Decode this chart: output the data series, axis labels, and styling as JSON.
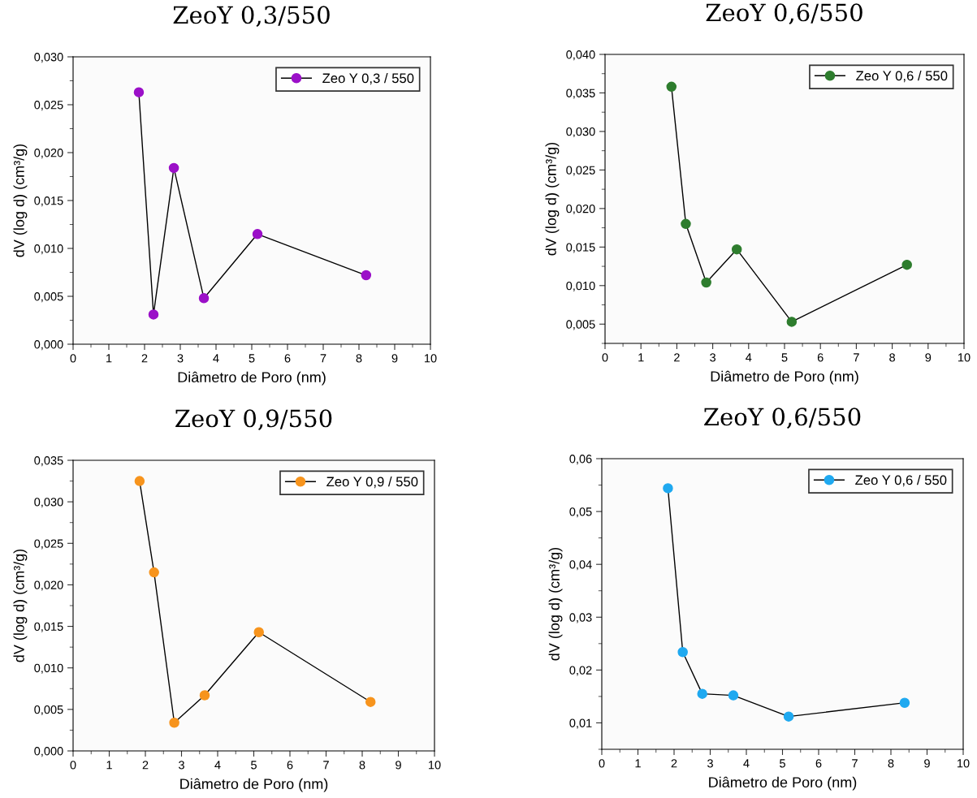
{
  "chart_data": [
    {
      "type": "line",
      "title": "ZeoY 0,3/550",
      "xlabel": "Diâmetro de Poro (nm)",
      "ylabel": "dV (log d) (cm³/g)",
      "xlim": [
        0,
        10
      ],
      "xticks": [
        0,
        1,
        2,
        3,
        4,
        5,
        6,
        7,
        8,
        9,
        10
      ],
      "ylim": [
        0,
        0.03
      ],
      "yticks": [
        {
          "value": 0,
          "label": "0,000"
        },
        {
          "value": 0.005,
          "label": "0,005"
        },
        {
          "value": 0.01,
          "label": "0,010"
        },
        {
          "value": 0.015,
          "label": "0,015"
        },
        {
          "value": 0.02,
          "label": "0,020"
        },
        {
          "value": 0.025,
          "label": "0,025"
        },
        {
          "value": 0.03,
          "label": "0,030"
        }
      ],
      "marker": "circle",
      "legend": "top right",
      "grid": false,
      "series": [
        {
          "name": "Zeo Y 0,3 / 550",
          "color": "#9b10c8",
          "x": [
            1.84,
            2.25,
            2.82,
            3.66,
            5.16,
            8.2
          ],
          "values": [
            0.0263,
            0.0031,
            0.0184,
            0.0048,
            0.0115,
            0.0072
          ]
        }
      ]
    },
    {
      "type": "line",
      "title": "ZeoY 0,6/550",
      "xlabel": "Diâmetro de Poro (nm)",
      "ylabel": "dV (log d) (cm³/g)",
      "xlim": [
        0,
        10
      ],
      "xticks": [
        0,
        1,
        2,
        3,
        4,
        5,
        6,
        7,
        8,
        9,
        10
      ],
      "ylim": [
        0.0025,
        0.04
      ],
      "yticks": [
        {
          "value": 0.005,
          "label": "0,005"
        },
        {
          "value": 0.01,
          "label": "0,010"
        },
        {
          "value": 0.015,
          "label": "0,015"
        },
        {
          "value": 0.02,
          "label": "0,020"
        },
        {
          "value": 0.025,
          "label": "0,025"
        },
        {
          "value": 0.03,
          "label": "0,030"
        },
        {
          "value": 0.035,
          "label": "0,035"
        },
        {
          "value": 0.04,
          "label": "0,040"
        }
      ],
      "marker": "circle",
      "legend": "top right",
      "grid": false,
      "series": [
        {
          "name": "Zeo Y 0,6 / 550",
          "color": "#2e7d2e",
          "x": [
            1.85,
            2.25,
            2.82,
            3.67,
            5.2,
            8.41
          ],
          "values": [
            0.0358,
            0.018,
            0.0104,
            0.0147,
            0.0053,
            0.0127
          ]
        }
      ]
    },
    {
      "type": "line",
      "title": "ZeoY 0,9/550",
      "xlabel": "Diâmetro de Poro (nm)",
      "ylabel": "dV (log d) (cm³/g)",
      "xlim": [
        0,
        10
      ],
      "xticks": [
        0,
        1,
        2,
        3,
        4,
        5,
        6,
        7,
        8,
        9,
        10
      ],
      "ylim": [
        0,
        0.035
      ],
      "yticks": [
        {
          "value": 0,
          "label": "0,000"
        },
        {
          "value": 0.005,
          "label": "0,005"
        },
        {
          "value": 0.01,
          "label": "0,010"
        },
        {
          "value": 0.015,
          "label": "0,015"
        },
        {
          "value": 0.02,
          "label": "0,020"
        },
        {
          "value": 0.025,
          "label": "0,025"
        },
        {
          "value": 0.03,
          "label": "0,030"
        },
        {
          "value": 0.035,
          "label": "0,035"
        }
      ],
      "marker": "circle",
      "legend": "top right",
      "grid": false,
      "series": [
        {
          "name": "Zeo Y 0,9 / 550",
          "color": "#f7941d",
          "x": [
            1.84,
            2.24,
            2.8,
            3.64,
            5.14,
            8.23
          ],
          "values": [
            0.0325,
            0.0215,
            0.0034,
            0.0067,
            0.0143,
            0.0059
          ]
        }
      ]
    },
    {
      "type": "line",
      "title": "ZeoY 0,6/550",
      "xlabel": "Diâmetro de Poro (nm)",
      "ylabel": "dV (log d) (cm³/g)",
      "xlim": [
        0,
        10
      ],
      "xticks": [
        0,
        1,
        2,
        3,
        4,
        5,
        6,
        7,
        8,
        9,
        10
      ],
      "ylim": [
        0.005,
        0.06
      ],
      "yticks": [
        {
          "value": 0.01,
          "label": "0,01"
        },
        {
          "value": 0.02,
          "label": "0,02"
        },
        {
          "value": 0.03,
          "label": "0,03"
        },
        {
          "value": 0.04,
          "label": "0,04"
        },
        {
          "value": 0.05,
          "label": "0,05"
        },
        {
          "value": 0.06,
          "label": "0,06"
        }
      ],
      "marker": "circle",
      "legend": "top right",
      "grid": false,
      "series": [
        {
          "name": "Zeo Y 0,6 / 550",
          "color": "#1fa9f0",
          "x": [
            1.83,
            2.24,
            2.78,
            3.64,
            5.17,
            8.38
          ],
          "values": [
            0.0544,
            0.0234,
            0.0155,
            0.0152,
            0.0112,
            0.0138
          ]
        }
      ]
    }
  ]
}
